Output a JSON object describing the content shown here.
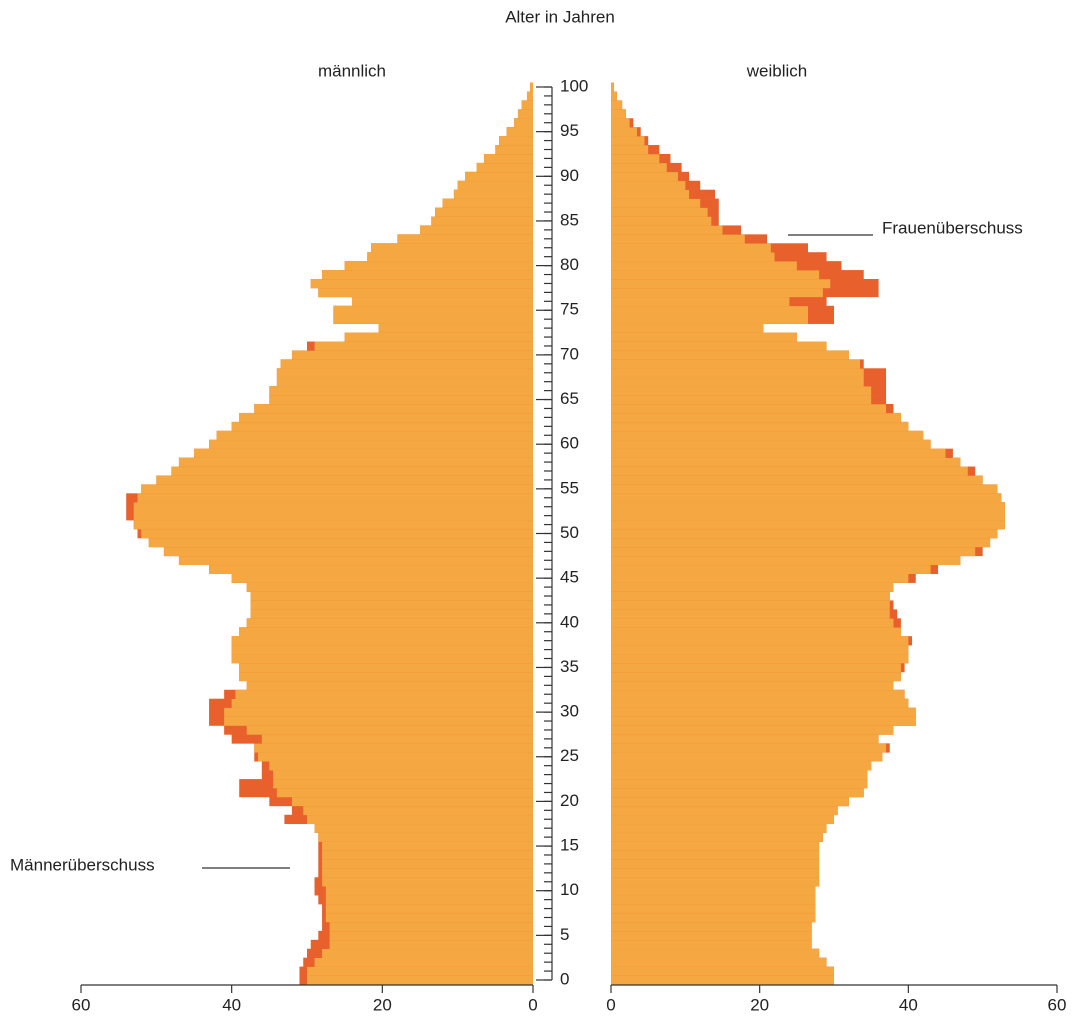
{
  "chart_data": {
    "type": "population_pyramid",
    "title": "Alter in Jahren",
    "categories": [
      0,
      1,
      2,
      3,
      4,
      5,
      6,
      7,
      8,
      9,
      10,
      11,
      12,
      13,
      14,
      15,
      16,
      17,
      18,
      19,
      20,
      21,
      22,
      23,
      24,
      25,
      26,
      27,
      28,
      29,
      30,
      31,
      32,
      33,
      34,
      35,
      36,
      37,
      38,
      39,
      40,
      41,
      42,
      43,
      44,
      45,
      46,
      47,
      48,
      49,
      50,
      51,
      52,
      53,
      54,
      55,
      56,
      57,
      58,
      59,
      60,
      61,
      62,
      63,
      64,
      65,
      66,
      67,
      68,
      69,
      70,
      71,
      72,
      73,
      74,
      75,
      76,
      77,
      78,
      79,
      80,
      81,
      82,
      83,
      84,
      85,
      86,
      87,
      88,
      89,
      90,
      91,
      92,
      93,
      94,
      95,
      96,
      97,
      98,
      99,
      100
    ],
    "series": [
      {
        "name": "männlich",
        "color": "#f5a742",
        "values": [
          31,
          31,
          30.5,
          30,
          29.5,
          28.5,
          28,
          28,
          28,
          28.5,
          29,
          29,
          28.5,
          28.5,
          28.5,
          28.5,
          28.5,
          29,
          33,
          32,
          35,
          39,
          39,
          36,
          36,
          37,
          37,
          40,
          41,
          43,
          43,
          43,
          41,
          38,
          39,
          39,
          40,
          40,
          40,
          39,
          38,
          37.5,
          37.5,
          37.5,
          38,
          40,
          43,
          47,
          49,
          51,
          52.5,
          53,
          54,
          54,
          54,
          52,
          50,
          48,
          47,
          45,
          43,
          42,
          40,
          39,
          37,
          35,
          35,
          34,
          34,
          33.5,
          32,
          30,
          25,
          20.5,
          26.5,
          26.5,
          24,
          28.5,
          29.5,
          28,
          25,
          22,
          21.5,
          18,
          15,
          13.5,
          13,
          12,
          10.5,
          10,
          9,
          7.5,
          6.5,
          5,
          4.5,
          3.5,
          2.5,
          2,
          1.5,
          0.8,
          0.4
        ]
      },
      {
        "name": "weiblich",
        "color": "#f5a742",
        "values": [
          30,
          30,
          29,
          28,
          27,
          27,
          27,
          27.5,
          27.5,
          27.5,
          27.5,
          28,
          28,
          28,
          28,
          28,
          28.5,
          29,
          30,
          30.5,
          32,
          34,
          34.5,
          34.5,
          35,
          36.5,
          37.5,
          36,
          38,
          41,
          41,
          40,
          39.5,
          38,
          39,
          39.5,
          40,
          40,
          40.5,
          39,
          39,
          38.5,
          38,
          37.5,
          38,
          41,
          44,
          47,
          50,
          51,
          52,
          53,
          53,
          53,
          52.5,
          52,
          50,
          49,
          47,
          46,
          43,
          42,
          40,
          39,
          38,
          37,
          37,
          37,
          37,
          34,
          32,
          29,
          25,
          20.5,
          30,
          30,
          29,
          36,
          36,
          34,
          31,
          29,
          26.5,
          21,
          17.5,
          14.5,
          14.5,
          14.5,
          14,
          12,
          10.5,
          9.5,
          8,
          6.5,
          5,
          4,
          3,
          2,
          1.5,
          0.8,
          0.4
        ]
      }
    ],
    "surplus_color": "#e8602c",
    "xlim": [
      0,
      60
    ],
    "xticks": [
      0,
      20,
      40,
      60
    ],
    "ylim": [
      0,
      100
    ],
    "yticks": [
      0,
      5,
      10,
      15,
      20,
      25,
      30,
      35,
      40,
      45,
      50,
      55,
      60,
      65,
      70,
      75,
      80,
      85,
      90,
      95,
      100
    ],
    "annotations": [
      "Männerüberschuss",
      "Frauenüberschuss"
    ]
  }
}
